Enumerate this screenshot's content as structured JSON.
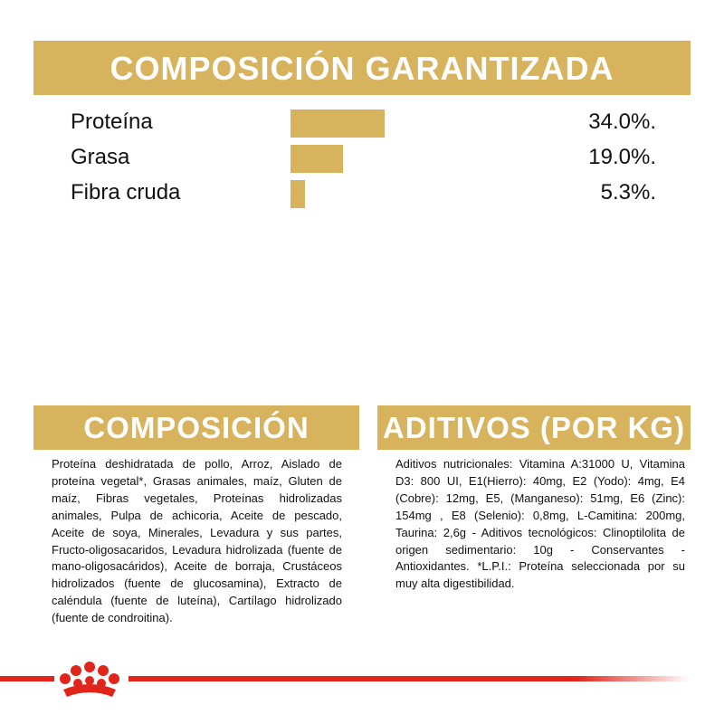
{
  "header": {
    "title": "COMPOSICIÓN GARANTIZADA"
  },
  "nutrients": [
    {
      "name": "Proteína",
      "value": 34.0,
      "value_label": "34.0%."
    },
    {
      "name": "Grasa",
      "value": 19.0,
      "value_label": "19.0%."
    },
    {
      "name": "Fibra cruda",
      "value": 5.3,
      "value_label": "5.3%."
    }
  ],
  "composition": {
    "title": "COMPOSICIÓN",
    "text": "Proteína deshidratada de pollo, Arroz, Aislado de proteína vegetal*, Grasas animales, maíz, Gluten de maíz, Fibras vegetales, Proteínas hidrolizadas animales, Pulpa de achicoria, Aceite de pescado, Aceite de soya, Minerales, Levadura y sus partes, Fructo-oligosacaridos, Levadura hidrolizada (fuente de mano-oligosacáridos), Aceite de borraja, Crustáceos hidrolizados (fuente de glucosamina), Extracto de caléndula (fuente de luteína), Cartílago hidrolizado (fuente de condroitina)."
  },
  "additives": {
    "title": "ADITIVOS (POR KG)",
    "text": "Aditivos nutricionales: Vitamina A:31000 U, Vitamina D3: 800 UI, E1(Hierro): 40mg, E2 (Yodo): 4mg, E4 (Cobre): 12mg, E5, (Manganeso): 51mg, E6 (Zinc): 154mg , E8 (Selenio): 0,8mg, L-Camitina: 200mg, Taurina: 2,6g - Aditivos tecnológicos: Clinoptilolita de origen sedimentario: 10g - Conservantes - Antioxidantes. *L.P.I.: Proteína seleccionada por su muy alta digestibilidad."
  }
}
